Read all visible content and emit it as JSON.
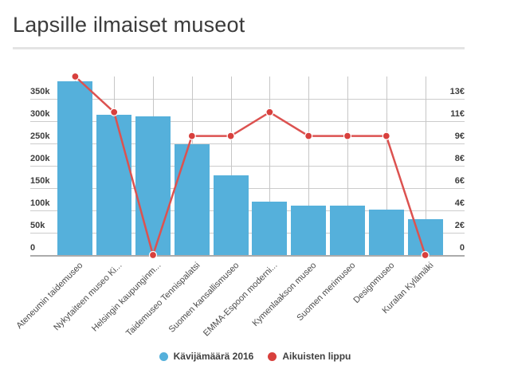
{
  "title": "Lapsille ilmaiset museot",
  "chart_data": {
    "type": "bar",
    "subtype": "bar-and-line-dual-axis",
    "title": "Lapsille ilmaiset museot",
    "grid": true,
    "legend_position": "bottom-center",
    "categories": [
      "Ateneumin taidemuseo",
      "Nykytaiteen museo Ki...",
      "Helsingin kaupunginm...",
      "Taidemuseo Tennispalatsi",
      "Suomen kansallismuseo",
      "EMMA-Espoon moderni...",
      "Kymenlaakson museo",
      "Suomen merimuseo",
      "Designmuseo",
      "Kuralan Kylämäki"
    ],
    "series": [
      {
        "name": "Kävijämäärä 2016",
        "type": "bar",
        "axis": "left",
        "color": "#55b0db",
        "values": [
          390000,
          315000,
          310000,
          248000,
          178000,
          120000,
          110000,
          110000,
          102000,
          81000
        ]
      },
      {
        "name": "Aikuisten lippu",
        "type": "line",
        "axis": "right",
        "color": "#dc5250",
        "dot_color": "#d8403d",
        "values": [
          15,
          12,
          0,
          10,
          10,
          12,
          10,
          10,
          10,
          0
        ]
      }
    ],
    "left_axis": {
      "ticks": [
        "0",
        "50k",
        "100k",
        "150k",
        "200k",
        "250k",
        "300k",
        "350k"
      ],
      "tick_values": [
        0,
        50000,
        100000,
        150000,
        200000,
        250000,
        300000,
        350000
      ],
      "max": 400000
    },
    "right_axis": {
      "ticks": [
        "0",
        "2€",
        "4€",
        "6€",
        "8€",
        "9€",
        "11€",
        "13€"
      ],
      "tick_values": [
        0,
        1.875,
        3.75,
        5.625,
        7.5,
        9.375,
        11.25,
        13.125
      ],
      "max": 15
    }
  },
  "legend": {
    "items": [
      {
        "label": "Kävijämäärä 2016",
        "color": "#55b0db",
        "marker": "circle"
      },
      {
        "label": "Aikuisten lippu",
        "color": "#d8403d",
        "marker": "circle"
      }
    ]
  }
}
